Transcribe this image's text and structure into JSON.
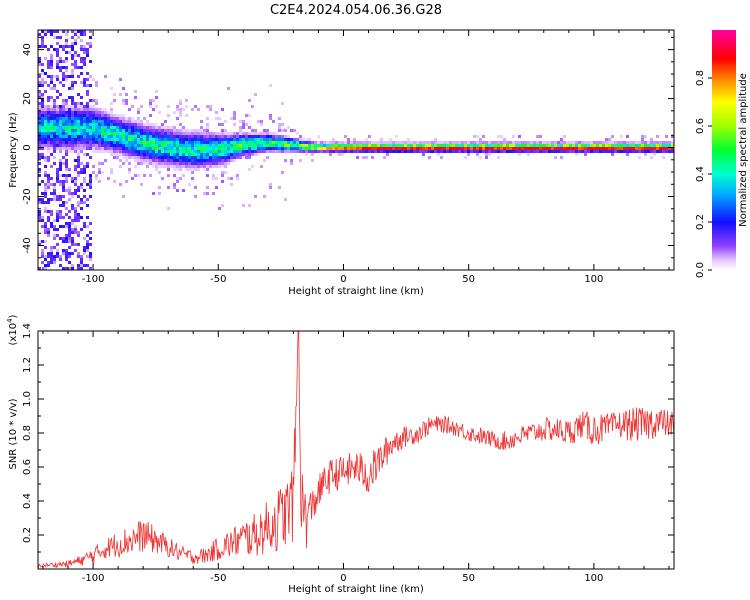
{
  "title": "C2E4.2024.054.06.36.G28",
  "chart_data": [
    {
      "type": "heatmap",
      "xlabel": "Height of straight line (km)",
      "ylabel": "Frequency (Hz)",
      "xlim": [
        -122,
        132
      ],
      "ylim": [
        -50,
        48
      ],
      "x_ticks": [
        -100,
        -50,
        0,
        50,
        100
      ],
      "x_tick_labels": [
        "-100",
        "-50",
        "0",
        "50",
        "100"
      ],
      "y_ticks": [
        -40,
        -20,
        0,
        20,
        40
      ],
      "y_tick_labels": [
        "-40",
        "-20",
        "0",
        "20",
        "40"
      ],
      "colorbar": {
        "label": "Normalized spectral amplitude",
        "range": [
          0,
          1
        ],
        "ticks": [
          0.0,
          0.2,
          0.4,
          0.6,
          0.8
        ],
        "tick_labels": [
          "0.0",
          "0.2",
          "0.4",
          "0.6",
          "0.8"
        ]
      },
      "ridge": {
        "description_free": true,
        "x": [
          -100,
          -90,
          -80,
          -70,
          -60,
          -50,
          -40,
          -30,
          -20,
          -10,
          0,
          20,
          50,
          100,
          130
        ],
        "center_hz": [
          8,
          5,
          2,
          0,
          -1,
          -1,
          1,
          2,
          1,
          0,
          0,
          0,
          0,
          0,
          0
        ],
        "width_hz": [
          9,
          8,
          8,
          8,
          8,
          7,
          5,
          4,
          3,
          2,
          2,
          2,
          2,
          2,
          2
        ],
        "peak_amplitude": [
          0.45,
          0.5,
          0.5,
          0.5,
          0.5,
          0.5,
          0.55,
          0.55,
          0.6,
          0.7,
          0.85,
          0.9,
          0.9,
          0.9,
          0.9
        ]
      },
      "noise_region_x": [
        -122,
        -100
      ],
      "grid": false
    },
    {
      "type": "line",
      "xlabel": "Height of straight line (km)",
      "ylabel": "SNR (10 * v/v)",
      "y_scale_label": "(x10",
      "y_scale_exponent": "4",
      "y_scale_suffix": ")",
      "xlim": [
        -122,
        132
      ],
      "ylim": [
        0,
        1.4
      ],
      "x_ticks": [
        -100,
        -50,
        0,
        50,
        100
      ],
      "x_tick_labels": [
        "-100",
        "-50",
        "0",
        "50",
        "100"
      ],
      "y_ticks": [
        0.2,
        0.4,
        0.6,
        0.8,
        1.0,
        1.2,
        1.4
      ],
      "y_tick_labels": [
        "0.2",
        "0.4",
        "0.6",
        "0.8",
        "1.0",
        "1.2",
        "1.4"
      ],
      "series": [
        {
          "color": "#ee3333",
          "x": [
            -122,
            -110,
            -105,
            -100,
            -95,
            -90,
            -85,
            -80,
            -75,
            -70,
            -65,
            -60,
            -55,
            -50,
            -45,
            -40,
            -35,
            -30,
            -25,
            -22,
            -20,
            -18,
            -17,
            -16,
            -15,
            -13,
            -10,
            -8,
            -5,
            0,
            5,
            10,
            15,
            20,
            25,
            30,
            35,
            40,
            45,
            50,
            55,
            60,
            65,
            70,
            75,
            80,
            85,
            90,
            95,
            100,
            105,
            110,
            115,
            120,
            125,
            130
          ],
          "y": [
            0.02,
            0.03,
            0.05,
            0.08,
            0.12,
            0.15,
            0.17,
            0.2,
            0.17,
            0.13,
            0.09,
            0.07,
            0.08,
            0.12,
            0.15,
            0.18,
            0.2,
            0.25,
            0.3,
            0.35,
            0.4,
            1.35,
            0.45,
            0.35,
            0.3,
            0.35,
            0.45,
            0.5,
            0.55,
            0.57,
            0.6,
            0.55,
            0.65,
            0.75,
            0.78,
            0.8,
            0.85,
            0.85,
            0.83,
            0.8,
            0.78,
            0.76,
            0.75,
            0.78,
            0.8,
            0.82,
            0.82,
            0.8,
            0.85,
            0.82,
            0.83,
            0.85,
            0.85,
            0.85,
            0.87,
            0.85
          ],
          "noise": [
            0.01,
            0.02,
            0.03,
            0.05,
            0.06,
            0.08,
            0.09,
            0.1,
            0.08,
            0.06,
            0.05,
            0.04,
            0.05,
            0.07,
            0.09,
            0.11,
            0.13,
            0.16,
            0.2,
            0.2,
            0.25,
            0.1,
            0.2,
            0.2,
            0.2,
            0.12,
            0.1,
            0.1,
            0.1,
            0.1,
            0.1,
            0.12,
            0.1,
            0.08,
            0.06,
            0.06,
            0.05,
            0.05,
            0.05,
            0.05,
            0.05,
            0.05,
            0.06,
            0.06,
            0.06,
            0.07,
            0.07,
            0.08,
            0.08,
            0.1,
            0.08,
            0.08,
            0.1,
            0.1,
            0.1,
            0.08
          ]
        }
      ],
      "grid": false
    }
  ]
}
